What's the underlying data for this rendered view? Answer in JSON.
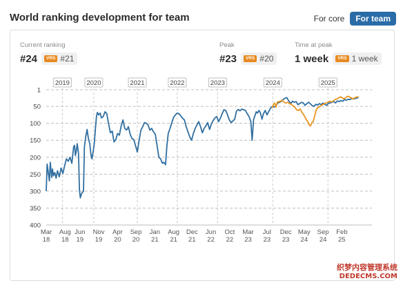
{
  "header": {
    "title": "World ranking development for team",
    "toggle_core": "For core",
    "toggle_team": "For team"
  },
  "stats": {
    "current": {
      "label": "Current ranking",
      "value": "#24",
      "vrs_badge": "VRS",
      "vrs_value": "#21"
    },
    "peak": {
      "label": "Peak",
      "value": "#23",
      "vrs_badge": "VRS",
      "vrs_value": "#20"
    },
    "time_at_peak": {
      "label": "Time at peak",
      "value": "1 week",
      "vrs_badge": "VRS",
      "vrs_value": "1 week"
    }
  },
  "watermark": {
    "line1": "织梦内容管理系统",
    "line2": "DEDECMS.COM"
  },
  "colors": {
    "team_line": "#2f6ea0",
    "vrs_line": "#e8941f",
    "accent": "#2a6ca7",
    "vrs_badge": "#e8891e"
  },
  "chart_data": {
    "type": "line",
    "ylim": [
      400,
      1
    ],
    "y_ticks": [
      1,
      50,
      100,
      150,
      200,
      250,
      300,
      350,
      400
    ],
    "x_range": [
      2018.16,
      2025.42
    ],
    "x_ticks": [
      {
        "t": 2018.16,
        "month": "Mar",
        "year": "18"
      },
      {
        "t": 2018.58,
        "month": "Aug",
        "year": "18"
      },
      {
        "t": 2018.91,
        "month": "Jun",
        "year": "19"
      },
      {
        "t": 2019.33,
        "month": "Nov",
        "year": "19"
      },
      {
        "t": 2019.75,
        "month": "Apr",
        "year": "20"
      },
      {
        "t": 2020.16,
        "month": "Sep",
        "year": "20"
      },
      {
        "t": 2020.58,
        "month": "Jan",
        "year": "21"
      },
      {
        "t": 2021.0,
        "month": "Aug",
        "year": "21"
      },
      {
        "t": 2021.41,
        "month": "Dec",
        "year": "21"
      },
      {
        "t": 2021.83,
        "month": "Jun",
        "year": "22"
      },
      {
        "t": 2022.25,
        "month": "Oct",
        "year": "22"
      },
      {
        "t": 2022.66,
        "month": "Mar",
        "year": "23"
      },
      {
        "t": 2023.08,
        "month": "Jul",
        "year": "23"
      },
      {
        "t": 2023.5,
        "month": "Dec",
        "year": "23"
      },
      {
        "t": 2023.91,
        "month": "May",
        "year": "24"
      },
      {
        "t": 2024.33,
        "month": "Sep",
        "year": "24"
      },
      {
        "t": 2024.75,
        "month": "Feb",
        "year": "25"
      }
    ],
    "year_markers": [
      {
        "label": "2019",
        "t": 2018.52
      },
      {
        "label": "2020",
        "t": 2019.22
      },
      {
        "label": "2021",
        "t": 2020.19
      },
      {
        "label": "2022",
        "t": 2021.08
      },
      {
        "label": "2023",
        "t": 2021.98
      },
      {
        "label": "2024",
        "t": 2023.21
      },
      {
        "label": "2025",
        "t": 2024.44
      }
    ],
    "series": [
      {
        "key": "team",
        "points": [
          [
            2018.16,
            300
          ],
          [
            2018.18,
            220
          ],
          [
            2018.21,
            250
          ],
          [
            2018.23,
            270
          ],
          [
            2018.25,
            215
          ],
          [
            2018.28,
            260
          ],
          [
            2018.3,
            235
          ],
          [
            2018.32,
            255
          ],
          [
            2018.35,
            245
          ],
          [
            2018.38,
            262
          ],
          [
            2018.41,
            240
          ],
          [
            2018.45,
            258
          ],
          [
            2018.49,
            232
          ],
          [
            2018.53,
            248
          ],
          [
            2018.57,
            225
          ],
          [
            2018.61,
            205
          ],
          [
            2018.65,
            212
          ],
          [
            2018.69,
            200
          ],
          [
            2018.73,
            218
          ],
          [
            2018.77,
            170
          ],
          [
            2018.79,
            165
          ],
          [
            2018.81,
            195
          ],
          [
            2018.83,
            182
          ],
          [
            2018.85,
            160
          ],
          [
            2018.88,
            190
          ],
          [
            2018.9,
            295
          ],
          [
            2018.92,
            320
          ],
          [
            2018.94,
            310
          ],
          [
            2018.96,
            305
          ],
          [
            2018.99,
            300
          ],
          [
            2019.01,
            170
          ],
          [
            2019.04,
            140
          ],
          [
            2019.07,
            118
          ],
          [
            2019.1,
            145
          ],
          [
            2019.13,
            160
          ],
          [
            2019.16,
            195
          ],
          [
            2019.18,
            205
          ],
          [
            2019.21,
            180
          ],
          [
            2019.23,
            160
          ],
          [
            2019.26,
            110
          ],
          [
            2019.28,
            80
          ],
          [
            2019.3,
            68
          ],
          [
            2019.33,
            75
          ],
          [
            2019.36,
            70
          ],
          [
            2019.39,
            84
          ],
          [
            2019.43,
            80
          ],
          [
            2019.47,
            66
          ],
          [
            2019.51,
            72
          ],
          [
            2019.55,
            102
          ],
          [
            2019.59,
            128
          ],
          [
            2019.63,
            123
          ],
          [
            2019.67,
            155
          ],
          [
            2019.71,
            148
          ],
          [
            2019.75,
            130
          ],
          [
            2019.79,
            135
          ],
          [
            2019.83,
            108
          ],
          [
            2019.87,
            90
          ],
          [
            2019.91,
            115
          ],
          [
            2019.95,
            120
          ],
          [
            2019.99,
            110
          ],
          [
            2020.03,
            132
          ],
          [
            2020.07,
            145
          ],
          [
            2020.11,
            148
          ],
          [
            2020.16,
            170
          ],
          [
            2020.19,
            185
          ],
          [
            2020.23,
            150
          ],
          [
            2020.27,
            120
          ],
          [
            2020.31,
            110
          ],
          [
            2020.35,
            98
          ],
          [
            2020.39,
            100
          ],
          [
            2020.43,
            105
          ],
          [
            2020.47,
            120
          ],
          [
            2020.51,
            115
          ],
          [
            2020.55,
            125
          ],
          [
            2020.59,
            132
          ],
          [
            2020.63,
            165
          ],
          [
            2020.67,
            200
          ],
          [
            2020.71,
            205
          ],
          [
            2020.75,
            218
          ],
          [
            2020.78,
            215
          ],
          [
            2020.82,
            222
          ],
          [
            2020.85,
            165
          ],
          [
            2020.88,
            130
          ],
          [
            2020.92,
            115
          ],
          [
            2020.96,
            98
          ],
          [
            2021.0,
            82
          ],
          [
            2021.04,
            75
          ],
          [
            2021.08,
            70
          ],
          [
            2021.12,
            72
          ],
          [
            2021.16,
            78
          ],
          [
            2021.2,
            85
          ],
          [
            2021.24,
            90
          ],
          [
            2021.28,
            110
          ],
          [
            2021.32,
            125
          ],
          [
            2021.36,
            140
          ],
          [
            2021.4,
            150
          ],
          [
            2021.44,
            130
          ],
          [
            2021.48,
            115
          ],
          [
            2021.52,
            105
          ],
          [
            2021.56,
            95
          ],
          [
            2021.6,
            110
          ],
          [
            2021.64,
            128
          ],
          [
            2021.68,
            115
          ],
          [
            2021.72,
            108
          ],
          [
            2021.76,
            98
          ],
          [
            2021.8,
            118
          ],
          [
            2021.84,
            102
          ],
          [
            2021.88,
            92
          ],
          [
            2021.92,
            84
          ],
          [
            2021.96,
            80
          ],
          [
            2022.0,
            95
          ],
          [
            2022.04,
            85
          ],
          [
            2022.08,
            72
          ],
          [
            2022.12,
            60
          ],
          [
            2022.16,
            62
          ],
          [
            2022.2,
            75
          ],
          [
            2022.24,
            90
          ],
          [
            2022.28,
            98
          ],
          [
            2022.32,
            93
          ],
          [
            2022.36,
            88
          ],
          [
            2022.4,
            64
          ],
          [
            2022.44,
            59
          ],
          [
            2022.48,
            63
          ],
          [
            2022.52,
            58
          ],
          [
            2022.56,
            60
          ],
          [
            2022.6,
            62
          ],
          [
            2022.64,
            72
          ],
          [
            2022.68,
            80
          ],
          [
            2022.72,
            95
          ],
          [
            2022.75,
            150
          ],
          [
            2022.78,
            90
          ],
          [
            2022.81,
            78
          ],
          [
            2022.84,
            66
          ],
          [
            2022.87,
            70
          ],
          [
            2022.9,
            62
          ],
          [
            2022.93,
            68
          ],
          [
            2022.97,
            88
          ],
          [
            2023.0,
            72
          ],
          [
            2023.04,
            62
          ],
          [
            2023.08,
            75
          ],
          [
            2023.12,
            65
          ],
          [
            2023.16,
            55
          ],
          [
            2023.2,
            50
          ],
          [
            2023.24,
            52
          ],
          [
            2023.28,
            48
          ],
          [
            2023.32,
            40
          ],
          [
            2023.36,
            38
          ],
          [
            2023.4,
            35
          ],
          [
            2023.44,
            30
          ],
          [
            2023.48,
            26
          ],
          [
            2023.52,
            24
          ],
          [
            2023.56,
            33
          ],
          [
            2023.59,
            38
          ],
          [
            2023.62,
            40
          ],
          [
            2023.65,
            35
          ],
          [
            2023.69,
            38
          ],
          [
            2023.73,
            36
          ],
          [
            2023.77,
            45
          ],
          [
            2023.81,
            42
          ],
          [
            2023.85,
            38
          ],
          [
            2023.89,
            40
          ],
          [
            2023.93,
            47
          ],
          [
            2023.97,
            42
          ],
          [
            2024.01,
            38
          ],
          [
            2024.05,
            43
          ],
          [
            2024.09,
            48
          ],
          [
            2024.13,
            50
          ],
          [
            2024.17,
            44
          ],
          [
            2024.21,
            46
          ],
          [
            2024.25,
            42
          ],
          [
            2024.29,
            45
          ],
          [
            2024.33,
            40
          ],
          [
            2024.37,
            44
          ],
          [
            2024.41,
            47
          ],
          [
            2024.45,
            41
          ],
          [
            2024.49,
            40
          ],
          [
            2024.53,
            38
          ],
          [
            2024.57,
            36
          ],
          [
            2024.61,
            40
          ],
          [
            2024.65,
            34
          ],
          [
            2024.69,
            36
          ],
          [
            2024.73,
            33
          ],
          [
            2024.77,
            35
          ],
          [
            2024.81,
            30
          ],
          [
            2024.85,
            32
          ],
          [
            2024.89,
            29
          ],
          [
            2024.93,
            30
          ],
          [
            2024.97,
            27
          ],
          [
            2025.02,
            28
          ],
          [
            2025.07,
            26
          ],
          [
            2025.12,
            24
          ]
        ]
      },
      {
        "key": "vrs",
        "points": [
          [
            2023.2,
            55
          ],
          [
            2023.22,
            45
          ],
          [
            2023.25,
            40
          ],
          [
            2023.28,
            52
          ],
          [
            2023.31,
            38
          ],
          [
            2023.34,
            36
          ],
          [
            2023.38,
            35
          ],
          [
            2023.42,
            32
          ],
          [
            2023.46,
            38
          ],
          [
            2023.5,
            40
          ],
          [
            2023.54,
            38
          ],
          [
            2023.58,
            42
          ],
          [
            2023.62,
            44
          ],
          [
            2023.66,
            48
          ],
          [
            2023.7,
            52
          ],
          [
            2023.74,
            60
          ],
          [
            2023.78,
            62
          ],
          [
            2023.82,
            58
          ],
          [
            2023.86,
            68
          ],
          [
            2023.9,
            75
          ],
          [
            2023.93,
            82
          ],
          [
            2023.96,
            90
          ],
          [
            2023.99,
            95
          ],
          [
            2024.02,
            105
          ],
          [
            2024.05,
            108
          ],
          [
            2024.08,
            98
          ],
          [
            2024.11,
            95
          ],
          [
            2024.14,
            80
          ],
          [
            2024.17,
            65
          ],
          [
            2024.2,
            55
          ],
          [
            2024.24,
            52
          ],
          [
            2024.28,
            48
          ],
          [
            2024.32,
            45
          ],
          [
            2024.36,
            42
          ],
          [
            2024.4,
            40
          ],
          [
            2024.44,
            38
          ],
          [
            2024.48,
            35
          ],
          [
            2024.52,
            37
          ],
          [
            2024.56,
            34
          ],
          [
            2024.6,
            30
          ],
          [
            2024.64,
            28
          ],
          [
            2024.68,
            25
          ],
          [
            2024.72,
            22
          ],
          [
            2024.76,
            25
          ],
          [
            2024.8,
            28
          ],
          [
            2024.84,
            24
          ],
          [
            2024.88,
            20
          ],
          [
            2024.92,
            22
          ],
          [
            2024.96,
            25
          ],
          [
            2025.0,
            28
          ],
          [
            2025.05,
            24
          ],
          [
            2025.1,
            22
          ],
          [
            2025.12,
            21
          ]
        ]
      }
    ]
  }
}
